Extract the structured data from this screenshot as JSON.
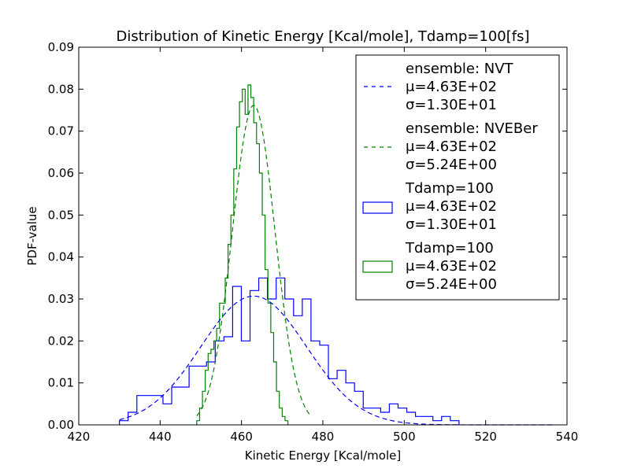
{
  "chart_data": {
    "type": "histogram",
    "title": "Distribution of Kinetic Energy [Kcal/mole], Tdamp=100[fs]",
    "xlabel": "Kinetic Energy [Kcal/mole]",
    "ylabel": "PDF-value",
    "xlim": [
      420,
      540
    ],
    "ylim": [
      0,
      0.09
    ],
    "xticks": [
      "420",
      "440",
      "460",
      "480",
      "500",
      "520",
      "540"
    ],
    "yticks": [
      "0.00",
      "0.01",
      "0.02",
      "0.03",
      "0.04",
      "0.05",
      "0.06",
      "0.07",
      "0.08",
      "0.09"
    ],
    "grid": false,
    "legend_position": "top-right",
    "colors": {
      "nvt": "#0000ff",
      "nveber": "#008000"
    },
    "fits": [
      {
        "line1": "ensemble: NVT",
        "line2": "=4.63E+02",
        "line3": "=1.30E+01",
        "mu": 463,
        "sigma": 13.0,
        "color": "#0000ff",
        "style": "dashed",
        "x_range": [
          430,
          537
        ]
      },
      {
        "line1": "ensemble: NVEBer",
        "line2": "=4.63E+02",
        "line3": "=5.24E+00",
        "mu": 463,
        "sigma": 5.24,
        "color": "#008000",
        "style": "dashed",
        "x_range": [
          449,
          477
        ]
      }
    ],
    "histograms": [
      {
        "line1": "Tdamp=100",
        "line2": "=4.63E+02",
        "line3": "=1.30E+01",
        "color": "#0000ff",
        "bin_start": 430,
        "bin_width": 2.14,
        "values": [
          0.001,
          0.003,
          0.007,
          0.007,
          0.007,
          0.005,
          0.009,
          0.009,
          0.014,
          0.014,
          0.015,
          0.02,
          0.021,
          0.033,
          0.02,
          0.032,
          0.035,
          0.03,
          0.035,
          0.03,
          0.026,
          0.03,
          0.02,
          0.019,
          0.011,
          0.013,
          0.01,
          0.008,
          0.004,
          0.004,
          0.003,
          0.005,
          0.004,
          0.003,
          0.002,
          0.002,
          0.001,
          0.002,
          0.001
        ]
      },
      {
        "line1": "Tdamp=100",
        "line2": "=4.63E+02",
        "line3": "=5.24E+00",
        "color": "#008000",
        "bin_start": 449,
        "bin_width": 0.7,
        "values": [
          0.001,
          0.004,
          0.008,
          0.013,
          0.017,
          0.018,
          0.02,
          0.023,
          0.029,
          0.029,
          0.035,
          0.043,
          0.05,
          0.061,
          0.071,
          0.077,
          0.08,
          0.074,
          0.081,
          0.078,
          0.072,
          0.067,
          0.06,
          0.05,
          0.037,
          0.029,
          0.022,
          0.015,
          0.008,
          0.004,
          0.002,
          0.001
        ]
      }
    ]
  }
}
